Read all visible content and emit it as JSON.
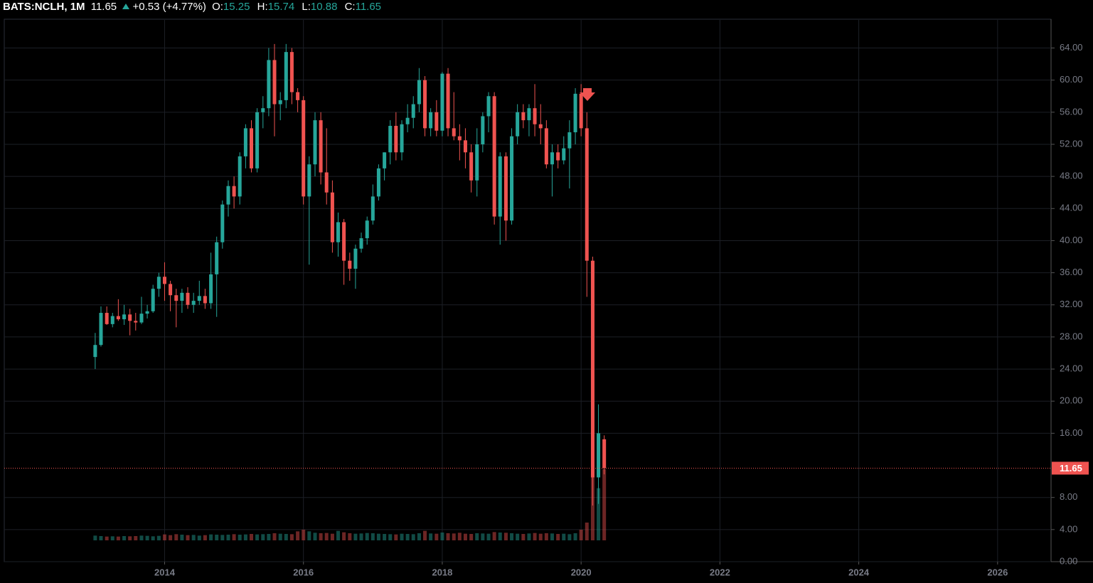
{
  "chart_data": {
    "type": "candlestick",
    "header": {
      "symbol": "BATS:NCLH, 1M",
      "last": "11.65",
      "change": "+0.53 (+4.77%)",
      "open_label": "O:",
      "open": 15.25,
      "high_label": "H:",
      "high": 15.74,
      "low_label": "L:",
      "low": 10.88,
      "close_label": "C:",
      "close": 11.65
    },
    "x": [
      2013,
      2013.083,
      2013.167,
      2013.25,
      2013.333,
      2013.417,
      2013.5,
      2013.583,
      2013.667,
      2013.75,
      2013.833,
      2013.917,
      2014,
      2014.083,
      2014.167,
      2014.25,
      2014.333,
      2014.417,
      2014.5,
      2014.583,
      2014.667,
      2014.75,
      2014.833,
      2014.917,
      2015,
      2015.083,
      2015.167,
      2015.25,
      2015.333,
      2015.417,
      2015.5,
      2015.583,
      2015.667,
      2015.75,
      2015.833,
      2015.917,
      2016,
      2016.083,
      2016.167,
      2016.25,
      2016.333,
      2016.417,
      2016.5,
      2016.583,
      2016.667,
      2016.75,
      2016.833,
      2016.917,
      2017,
      2017.083,
      2017.167,
      2017.25,
      2017.333,
      2017.417,
      2017.5,
      2017.583,
      2017.667,
      2017.75,
      2017.833,
      2017.917,
      2018,
      2018.083,
      2018.167,
      2018.25,
      2018.333,
      2018.417,
      2018.5,
      2018.583,
      2018.667,
      2018.75,
      2018.833,
      2018.917,
      2019,
      2019.083,
      2019.167,
      2019.25,
      2019.333,
      2019.417,
      2019.5,
      2019.583,
      2019.667,
      2019.75,
      2019.833,
      2019.917,
      2020,
      2020.083,
      2020.167,
      2020.25,
      2020.333
    ],
    "open": [
      25.5,
      27,
      31,
      29.6,
      30.6,
      30.2,
      30.8,
      30,
      29.8,
      30.9,
      31.2,
      34,
      35.5,
      34.6,
      33.2,
      32.5,
      33.5,
      32,
      32.5,
      33.1,
      32.2,
      35.8,
      39.8,
      44.5,
      46.8,
      45.5,
      50.5,
      54,
      49,
      56,
      56.5,
      62.5,
      57,
      57.5,
      63.5,
      58.5,
      57.5,
      45.5,
      49.5,
      55,
      48.5,
      46,
      39.8,
      42.3,
      37.5,
      36.5,
      39,
      40.3,
      42.5,
      45.5,
      49,
      51,
      54.3,
      51,
      54.5,
      55.3,
      57,
      60,
      54,
      56,
      53.7,
      60.8,
      54,
      53,
      52.5,
      51,
      47.5,
      52,
      55.5,
      58,
      43,
      50.5,
      42.5,
      53,
      56,
      55,
      56.5,
      54.5,
      54,
      49.5,
      51,
      50,
      51.5,
      53.5,
      58.3,
      54,
      37.5,
      10.5,
      15.25
    ],
    "high": [
      28.5,
      31.8,
      31.8,
      31,
      32.7,
      32,
      31.5,
      31,
      33,
      32,
      34.5,
      36,
      37.3,
      35,
      34,
      34,
      34.2,
      33.5,
      35,
      34,
      38.5,
      40.5,
      45,
      47.5,
      48,
      51,
      54.5,
      55,
      56.5,
      58,
      64,
      64.5,
      58.5,
      64.5,
      64,
      59,
      58,
      50.5,
      56,
      56,
      54,
      47.5,
      43.5,
      42.7,
      38.5,
      39.5,
      41,
      43,
      47,
      49.5,
      51,
      55,
      56,
      55,
      57,
      58,
      61.5,
      60.5,
      56.5,
      57.5,
      61,
      61.5,
      58.5,
      54.5,
      54,
      52,
      54,
      56,
      58.5,
      58.5,
      51,
      51,
      54,
      57,
      57,
      57,
      59.5,
      57,
      55,
      52,
      52,
      53,
      55,
      59,
      59.5,
      56,
      38,
      19.6,
      15.74
    ],
    "low": [
      24,
      26.8,
      29.5,
      29.2,
      30,
      29.5,
      28.2,
      28.8,
      29.6,
      30.3,
      31,
      33,
      32.5,
      31.2,
      29.2,
      31,
      31.5,
      31,
      32,
      31.5,
      31.5,
      30.5,
      39,
      43,
      44,
      44.5,
      49,
      48.5,
      48.5,
      54,
      55.5,
      53,
      55,
      56.5,
      57,
      56,
      44.5,
      37,
      48,
      47,
      44.5,
      38.5,
      38,
      34.5,
      35,
      34,
      38.5,
      39.5,
      42,
      45,
      47.5,
      49.5,
      50,
      50,
      53.5,
      54,
      56,
      53,
      53,
      53,
      53,
      53,
      52.5,
      50,
      49,
      46,
      45.5,
      51,
      53.5,
      42,
      39.5,
      40,
      42,
      52,
      54,
      53,
      53,
      52,
      49,
      45.5,
      49,
      49.5,
      46.5,
      52,
      53,
      33,
      7,
      7.2,
      10.88
    ],
    "close": [
      27,
      31,
      29.6,
      30.6,
      30.2,
      30.8,
      30,
      29.8,
      30.9,
      31.2,
      34,
      35.5,
      34.6,
      33.2,
      32.5,
      33.5,
      32,
      32.5,
      33.1,
      32.2,
      35.8,
      39.8,
      44.5,
      46.8,
      45.5,
      50.5,
      54,
      49,
      56,
      56.5,
      62.5,
      57,
      57.5,
      63.5,
      58.5,
      57.5,
      45.5,
      49.5,
      55,
      48.5,
      46,
      39.8,
      42.3,
      37.5,
      36.5,
      39,
      40.3,
      42.5,
      45.5,
      49,
      51,
      54.3,
      51,
      54.5,
      55.3,
      57,
      60,
      54,
      56,
      53.7,
      60.8,
      54,
      53,
      52.5,
      51,
      47.5,
      52,
      55.5,
      58,
      43,
      50.5,
      42.5,
      53,
      56,
      55,
      56.5,
      54.5,
      54,
      49.5,
      51,
      50,
      51.5,
      53.5,
      58.3,
      54,
      37.5,
      10.5,
      16,
      11.65
    ],
    "volume": [
      20,
      18,
      16,
      17,
      16,
      18,
      17,
      18,
      20,
      19,
      17,
      19,
      25,
      22,
      26,
      24,
      22,
      23,
      20,
      22,
      25,
      24,
      23,
      24,
      26,
      24,
      25,
      27,
      25,
      26,
      27,
      30,
      28,
      27,
      26,
      38,
      45,
      38,
      32,
      30,
      31,
      28,
      40,
      34,
      30,
      28,
      29,
      31,
      30,
      28,
      27,
      26,
      25,
      28,
      27,
      26,
      30,
      40,
      29,
      28,
      33,
      30,
      29,
      32,
      28,
      27,
      30,
      29,
      28,
      35,
      33,
      32,
      30,
      28,
      27,
      29,
      31,
      28,
      30,
      29,
      27,
      28,
      26,
      30,
      45,
      75,
      280,
      220,
      300
    ],
    "up_color": "#26a69a",
    "down_color": "#ef5350",
    "last_price": 11.65,
    "xlim": [
      2011.69,
      2026.77
    ],
    "xticks": [
      2014,
      2016,
      2018,
      2020,
      2022,
      2024,
      2026
    ],
    "ylim": [
      0,
      67.5
    ],
    "yticks": [
      {
        "value": 0,
        "label": "0.00"
      },
      {
        "value": 4,
        "label": "4.00"
      },
      {
        "value": 8,
        "label": "8.00"
      },
      {
        "value": 16,
        "label": "16.00"
      },
      {
        "value": 20,
        "label": "20.00"
      },
      {
        "value": 24,
        "label": "24.00"
      },
      {
        "value": 28,
        "label": "28.00"
      },
      {
        "value": 32,
        "label": "32.00"
      },
      {
        "value": 36,
        "label": "36.00"
      },
      {
        "value": 40,
        "label": "40.00"
      },
      {
        "value": 44,
        "label": "44.00"
      },
      {
        "value": 48,
        "label": "48.00"
      },
      {
        "value": 52,
        "label": "52.00"
      },
      {
        "value": 56,
        "label": "56.00"
      },
      {
        "value": 60,
        "label": "60.00"
      },
      {
        "value": 64,
        "label": "64.00"
      }
    ],
    "grid": true
  }
}
